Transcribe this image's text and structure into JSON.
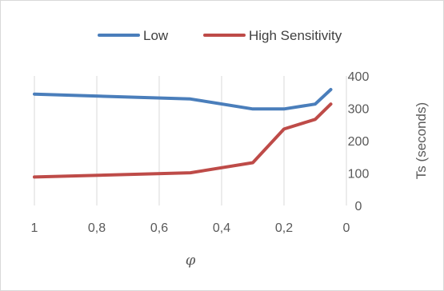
{
  "chart_data": {
    "type": "line",
    "title": "",
    "xlabel": "φ",
    "ylabel": "Ts (seconds)",
    "x_axis": {
      "reversed": true,
      "range": [
        0,
        1
      ],
      "ticks": [
        1,
        0.8,
        0.6,
        0.4,
        0.2,
        0
      ],
      "tick_labels": [
        "1",
        "0,8",
        "0,6",
        "0,4",
        "0,2",
        "0"
      ]
    },
    "y_axis": {
      "position": "right",
      "range": [
        0,
        400
      ],
      "ticks": [
        0,
        100,
        200,
        300,
        400
      ],
      "tick_labels": [
        "0",
        "100",
        "200",
        "300",
        "400"
      ]
    },
    "grid": {
      "vertical": true,
      "horizontal": false
    },
    "legend": {
      "position": "top"
    },
    "series": [
      {
        "name": "Low",
        "color": "#4a7ebb",
        "points": [
          [
            1.0,
            344
          ],
          [
            0.5,
            329
          ],
          [
            0.3,
            298
          ],
          [
            0.2,
            298
          ],
          [
            0.1,
            313
          ],
          [
            0.05,
            358
          ]
        ]
      },
      {
        "name": "High Sensitivity",
        "color": "#be4b48",
        "points": [
          [
            1.0,
            88
          ],
          [
            0.5,
            101
          ],
          [
            0.3,
            132
          ],
          [
            0.2,
            236
          ],
          [
            0.1,
            266
          ],
          [
            0.05,
            313
          ]
        ]
      }
    ]
  }
}
